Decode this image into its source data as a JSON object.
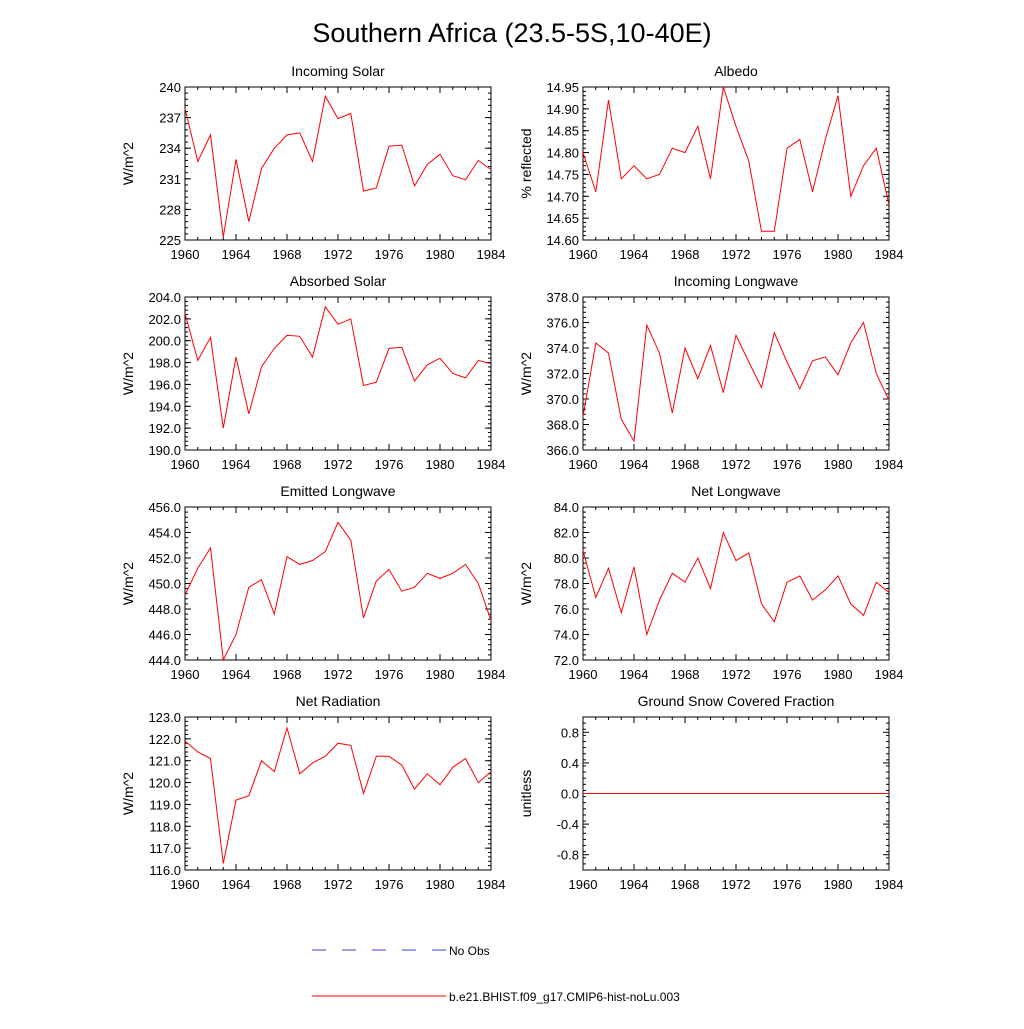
{
  "figure": {
    "title": "Southern Africa (23.5-5S,10-40E)"
  },
  "legend": {
    "obs_label": "No Obs",
    "obs_color": "#3b3bd1",
    "model_label": "b.e21.BHIST.f09_g17.CMIP6-hist-noLu.003",
    "model_color": "#ff0000"
  },
  "chart_data": [
    {
      "type": "line",
      "title": "Incoming Solar",
      "ylabel": "W/m^2",
      "xlim": [
        1960,
        1984
      ],
      "ylim": [
        225,
        240
      ],
      "xticks": [
        "1960",
        "1964",
        "1968",
        "1972",
        "1976",
        "1980",
        "1984"
      ],
      "yticks": [
        "225",
        "228",
        "231",
        "234",
        "237",
        "240"
      ],
      "x": [
        1960,
        1961,
        1962,
        1963,
        1964,
        1965,
        1966,
        1967,
        1968,
        1969,
        1970,
        1971,
        1972,
        1973,
        1974,
        1975,
        1976,
        1977,
        1978,
        1979,
        1980,
        1981,
        1982,
        1983,
        1984
      ],
      "series": [
        {
          "name": "b.e21.BHIST.f09_g17.CMIP6-hist-noLu.003",
          "values": [
            237.9,
            232.7,
            235.3,
            225.3,
            232.9,
            226.8,
            232.0,
            234.0,
            235.3,
            235.5,
            232.7,
            239.1,
            236.9,
            237.4,
            229.8,
            230.1,
            234.2,
            234.3,
            230.3,
            232.4,
            233.4,
            231.3,
            230.9,
            232.8,
            231.9
          ]
        }
      ]
    },
    {
      "type": "line",
      "title": "Albedo",
      "ylabel": "% reflected",
      "xlim": [
        1960,
        1984
      ],
      "ylim": [
        14.6,
        14.95
      ],
      "xticks": [
        "1960",
        "1964",
        "1968",
        "1972",
        "1976",
        "1980",
        "1984"
      ],
      "yticks": [
        "14.60",
        "14.65",
        "14.70",
        "14.75",
        "14.80",
        "14.85",
        "14.90",
        "14.95"
      ],
      "x": [
        1960,
        1961,
        1962,
        1963,
        1964,
        1965,
        1966,
        1967,
        1968,
        1969,
        1970,
        1971,
        1972,
        1973,
        1974,
        1975,
        1976,
        1977,
        1978,
        1979,
        1980,
        1981,
        1982,
        1983,
        1984
      ],
      "series": [
        {
          "name": "b.e21.BHIST.f09_g17.CMIP6-hist-noLu.003",
          "values": [
            14.8,
            14.71,
            14.92,
            14.74,
            14.77,
            14.74,
            14.75,
            14.81,
            14.8,
            14.86,
            14.74,
            14.95,
            14.86,
            14.78,
            14.62,
            14.62,
            14.81,
            14.83,
            14.71,
            14.83,
            14.93,
            14.7,
            14.77,
            14.81,
            14.68
          ]
        }
      ]
    },
    {
      "type": "line",
      "title": "Absorbed Solar",
      "ylabel": "W/m^2",
      "xlim": [
        1960,
        1984
      ],
      "ylim": [
        190,
        204
      ],
      "xticks": [
        "1960",
        "1964",
        "1968",
        "1972",
        "1976",
        "1980",
        "1984"
      ],
      "yticks": [
        "190.0",
        "192.0",
        "194.0",
        "196.0",
        "198.0",
        "200.0",
        "202.0",
        "204.0"
      ],
      "x": [
        1960,
        1961,
        1962,
        1963,
        1964,
        1965,
        1966,
        1967,
        1968,
        1969,
        1970,
        1971,
        1972,
        1973,
        1974,
        1975,
        1976,
        1977,
        1978,
        1979,
        1980,
        1981,
        1982,
        1983,
        1984
      ],
      "series": [
        {
          "name": "b.e21.BHIST.f09_g17.CMIP6-hist-noLu.003",
          "values": [
            202.5,
            198.2,
            200.3,
            192.0,
            198.5,
            193.3,
            197.6,
            199.3,
            200.5,
            200.4,
            198.5,
            203.1,
            201.5,
            202.0,
            195.9,
            196.2,
            199.3,
            199.4,
            196.3,
            197.8,
            198.4,
            197.0,
            196.6,
            198.2,
            197.9
          ]
        }
      ]
    },
    {
      "type": "line",
      "title": "Incoming Longwave",
      "ylabel": "W/m^2",
      "xlim": [
        1960,
        1984
      ],
      "ylim": [
        366,
        378
      ],
      "xticks": [
        "1960",
        "1964",
        "1968",
        "1972",
        "1976",
        "1980",
        "1984"
      ],
      "yticks": [
        "366.0",
        "368.0",
        "370.0",
        "372.0",
        "374.0",
        "376.0",
        "378.0"
      ],
      "x": [
        1960,
        1961,
        1962,
        1963,
        1964,
        1965,
        1966,
        1967,
        1968,
        1969,
        1970,
        1971,
        1972,
        1973,
        1974,
        1975,
        1976,
        1977,
        1978,
        1979,
        1980,
        1981,
        1982,
        1983,
        1984
      ],
      "series": [
        {
          "name": "b.e21.BHIST.f09_g17.CMIP6-hist-noLu.003",
          "values": [
            368.6,
            374.4,
            373.6,
            368.4,
            366.7,
            375.8,
            373.6,
            368.9,
            374.0,
            371.6,
            374.2,
            370.5,
            375.0,
            372.9,
            370.9,
            375.2,
            372.9,
            370.8,
            373.0,
            373.3,
            371.9,
            374.4,
            376.0,
            372.0,
            369.9
          ]
        }
      ]
    },
    {
      "type": "line",
      "title": "Emitted Longwave",
      "ylabel": "W/m^2",
      "xlim": [
        1960,
        1984
      ],
      "ylim": [
        444,
        456
      ],
      "xticks": [
        "1960",
        "1964",
        "1968",
        "1972",
        "1976",
        "1980",
        "1984"
      ],
      "yticks": [
        "444.0",
        "446.0",
        "448.0",
        "450.0",
        "452.0",
        "454.0",
        "456.0"
      ],
      "x": [
        1960,
        1961,
        1962,
        1963,
        1964,
        1965,
        1966,
        1967,
        1968,
        1969,
        1970,
        1971,
        1972,
        1973,
        1974,
        1975,
        1976,
        1977,
        1978,
        1979,
        1980,
        1981,
        1982,
        1983,
        1984
      ],
      "series": [
        {
          "name": "b.e21.BHIST.f09_g17.CMIP6-hist-noLu.003",
          "values": [
            449.1,
            451.2,
            452.8,
            444.0,
            446.0,
            449.7,
            450.3,
            447.6,
            452.1,
            451.5,
            451.8,
            452.5,
            454.8,
            453.4,
            447.3,
            450.2,
            451.1,
            449.4,
            449.7,
            450.8,
            450.4,
            450.8,
            451.5,
            450.0,
            447.1
          ]
        }
      ]
    },
    {
      "type": "line",
      "title": "Net Longwave",
      "ylabel": "W/m^2",
      "xlim": [
        1960,
        1984
      ],
      "ylim": [
        72,
        84
      ],
      "xticks": [
        "1960",
        "1964",
        "1968",
        "1972",
        "1976",
        "1980",
        "1984"
      ],
      "yticks": [
        "72.0",
        "74.0",
        "76.0",
        "78.0",
        "80.0",
        "82.0",
        "84.0"
      ],
      "x": [
        1960,
        1961,
        1962,
        1963,
        1964,
        1965,
        1966,
        1967,
        1968,
        1969,
        1970,
        1971,
        1972,
        1973,
        1974,
        1975,
        1976,
        1977,
        1978,
        1979,
        1980,
        1981,
        1982,
        1983,
        1984
      ],
      "series": [
        {
          "name": "b.e21.BHIST.f09_g17.CMIP6-hist-noLu.003",
          "values": [
            80.6,
            76.9,
            79.2,
            75.7,
            79.3,
            74.0,
            76.7,
            78.8,
            78.1,
            80.0,
            77.6,
            82.0,
            79.8,
            80.4,
            76.4,
            75.0,
            78.1,
            78.6,
            76.7,
            77.5,
            78.6,
            76.4,
            75.5,
            78.1,
            77.3
          ]
        }
      ]
    },
    {
      "type": "line",
      "title": "Net Radiation",
      "ylabel": "W/m^2",
      "xlim": [
        1960,
        1984
      ],
      "ylim": [
        116,
        123
      ],
      "xticks": [
        "1960",
        "1964",
        "1968",
        "1972",
        "1976",
        "1980",
        "1984"
      ],
      "yticks": [
        "116.0",
        "117.0",
        "118.0",
        "119.0",
        "120.0",
        "121.0",
        "122.0",
        "123.0"
      ],
      "x": [
        1960,
        1961,
        1962,
        1963,
        1964,
        1965,
        1966,
        1967,
        1968,
        1969,
        1970,
        1971,
        1972,
        1973,
        1974,
        1975,
        1976,
        1977,
        1978,
        1979,
        1980,
        1981,
        1982,
        1983,
        1984
      ],
      "series": [
        {
          "name": "b.e21.BHIST.f09_g17.CMIP6-hist-noLu.003",
          "values": [
            121.9,
            121.4,
            121.1,
            116.3,
            119.2,
            119.4,
            121.0,
            120.5,
            122.5,
            120.4,
            120.9,
            121.2,
            121.8,
            121.7,
            119.5,
            121.2,
            121.2,
            120.8,
            119.7,
            120.4,
            119.9,
            120.7,
            121.1,
            120.0,
            120.5
          ]
        }
      ]
    },
    {
      "type": "line",
      "title": "Ground Snow Covered Fraction",
      "ylabel": "unitless",
      "xlim": [
        1960,
        1984
      ],
      "ylim": [
        -1.0,
        1.0
      ],
      "xticks": [
        "1960",
        "1964",
        "1968",
        "1972",
        "1976",
        "1980",
        "1984"
      ],
      "yticks": [
        "-0.8",
        "-0.4",
        "0.0",
        "0.4",
        "0.8"
      ],
      "ytick_values": [
        -0.8,
        -0.4,
        0.0,
        0.4,
        0.8
      ],
      "x": [
        1960,
        1961,
        1962,
        1963,
        1964,
        1965,
        1966,
        1967,
        1968,
        1969,
        1970,
        1971,
        1972,
        1973,
        1974,
        1975,
        1976,
        1977,
        1978,
        1979,
        1980,
        1981,
        1982,
        1983,
        1984
      ],
      "series": [
        {
          "name": "b.e21.BHIST.f09_g17.CMIP6-hist-noLu.003",
          "values": [
            0,
            0,
            0,
            0,
            0,
            0,
            0,
            0,
            0,
            0,
            0,
            0,
            0,
            0,
            0,
            0,
            0,
            0,
            0,
            0,
            0,
            0,
            0,
            0,
            0
          ]
        }
      ]
    }
  ]
}
